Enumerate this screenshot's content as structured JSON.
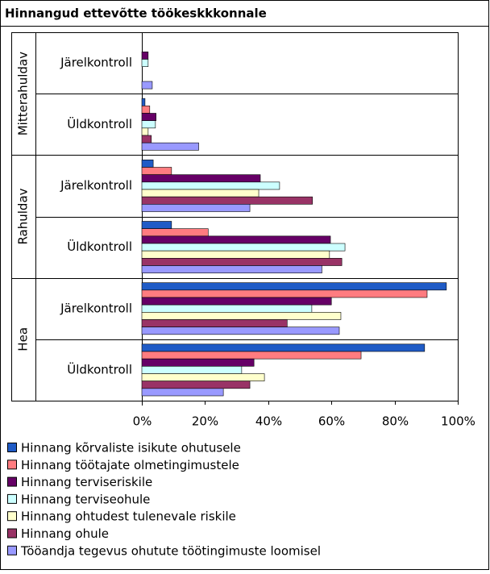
{
  "chart_data": {
    "type": "bar",
    "orientation": "horizontal",
    "title": "Hinnangud ettevõtte töökeskkkonnale",
    "groups": [
      "Mitterahuldav",
      "Rahuldav",
      "Hea"
    ],
    "categories": [
      "Järelkontroll",
      "Üldkontroll",
      "Järelkontroll",
      "Üldkontroll",
      "Järelkontroll",
      "Üldkontroll"
    ],
    "series": [
      {
        "name": "Hinnang kõrvaliste isikute ohutusele",
        "color": "#1f5bc6",
        "values": [
          0,
          1,
          3.6,
          9.4,
          96.4,
          89.5
        ]
      },
      {
        "name": "Hinnang töötajate olmetingimustele",
        "color": "#ff7c80",
        "values": [
          0,
          2.5,
          9.4,
          21,
          90.3,
          69.4
        ]
      },
      {
        "name": "Hinnang terviseriskile",
        "color": "#660066",
        "values": [
          2,
          4.5,
          37.5,
          59.7,
          60,
          35.5
        ]
      },
      {
        "name": "Hinnang terviseohule",
        "color": "#ccffff",
        "values": [
          2,
          4.3,
          43.6,
          64.3,
          53.8,
          31.6
        ]
      },
      {
        "name": "Hinnang ohtudest tulenevale riskile",
        "color": "#ffffcc",
        "values": [
          0,
          2,
          37,
          59.4,
          63,
          38.8
        ]
      },
      {
        "name": "Hinnang ohule",
        "color": "#993366",
        "values": [
          0,
          3,
          54,
          63.3,
          46,
          34.2
        ]
      },
      {
        "name": "Tööandja tegevus ohutute töötingimuste loomisel",
        "color": "#9999ff",
        "values": [
          3.3,
          18,
          34.2,
          57,
          62.5,
          25.8
        ]
      }
    ],
    "xlim": [
      0,
      100
    ],
    "xticks": [
      {
        "value": 0,
        "label": "0%"
      },
      {
        "value": 20,
        "label": "20%"
      },
      {
        "value": 40,
        "label": "40%"
      },
      {
        "value": 60,
        "label": "60%"
      },
      {
        "value": 80,
        "label": "80%"
      },
      {
        "value": 100,
        "label": "100%"
      }
    ]
  }
}
